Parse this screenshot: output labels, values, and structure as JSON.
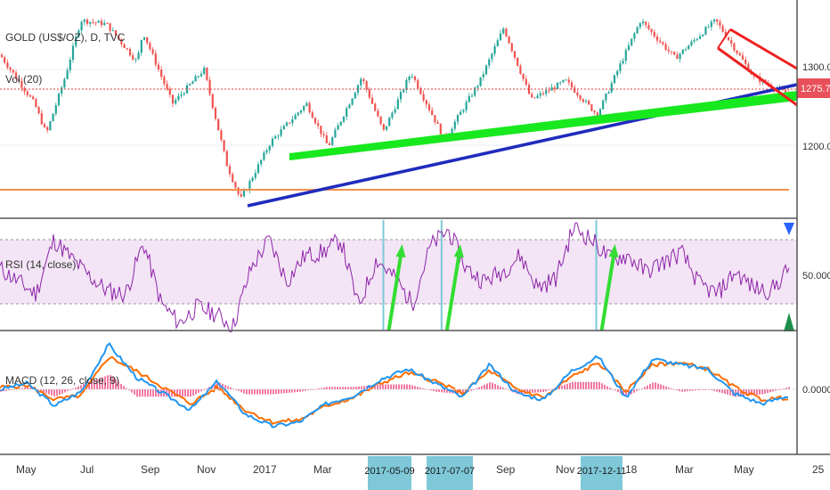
{
  "chart_data": [
    {
      "type": "candlestick",
      "name": "price-pane",
      "symbol_label": "GOLD (US$/OZ), D, TVC",
      "volume_label": "Vol (20)",
      "y_ticks": [
        "1300.00",
        "1200.00"
      ],
      "y_range": [
        1110,
        1390
      ],
      "last_price": "1275.75",
      "approx_close_path": [
        [
          "2016-05-01",
          1290
        ],
        [
          "2016-05-20",
          1255
        ],
        [
          "2016-06-01",
          1215
        ],
        [
          "2016-06-20",
          1290
        ],
        [
          "2016-07-06",
          1365
        ],
        [
          "2016-08-01",
          1360
        ],
        [
          "2016-09-01",
          1310
        ],
        [
          "2016-09-07",
          1350
        ],
        [
          "2016-10-07",
          1255
        ],
        [
          "2016-11-08",
          1300
        ],
        [
          "2016-12-01",
          1175
        ],
        [
          "2016-12-15",
          1128
        ],
        [
          "2017-01-15",
          1205
        ],
        [
          "2017-02-20",
          1255
        ],
        [
          "2017-03-14",
          1198
        ],
        [
          "2017-04-17",
          1290
        ],
        [
          "2017-05-09",
          1218
        ],
        [
          "2017-06-06",
          1296
        ],
        [
          "2017-07-10",
          1208
        ],
        [
          "2017-08-15",
          1285
        ],
        [
          "2017-09-08",
          1355
        ],
        [
          "2017-10-06",
          1260
        ],
        [
          "2017-11-10",
          1285
        ],
        [
          "2017-12-12",
          1240
        ],
        [
          "2018-01-25",
          1365
        ],
        [
          "2018-03-01",
          1315
        ],
        [
          "2018-04-11",
          1365
        ],
        [
          "2018-05-20",
          1290
        ],
        [
          "2018-06-22",
          1268
        ]
      ],
      "annotations": [
        {
          "kind": "horizontal-line",
          "color": "#f5914a",
          "value": 1135
        },
        {
          "kind": "horizontal-dotted-line",
          "color": "#e03a3a",
          "value": 1275.75
        },
        {
          "kind": "trendline",
          "color": "#1f2bbd",
          "from": [
            "2016-12-15",
            1128
          ],
          "to": [
            "2018-06-28",
            1278
          ]
        },
        {
          "kind": "trendline",
          "color": "#18e81e",
          "from": [
            "2017-02-01",
            1195
          ],
          "to": [
            "2018-06-28",
            1262
          ]
        },
        {
          "kind": "channel",
          "color": "#ee2020"
        }
      ]
    },
    {
      "type": "line",
      "name": "rsi-pane",
      "label": "RSI (14, close)",
      "y_ticks": [
        "50.0000"
      ],
      "y_range": [
        0,
        100
      ],
      "bands": [
        30,
        70
      ],
      "series": [
        {
          "values": [
            52,
            44,
            36,
            70,
            58,
            47,
            38,
            36,
            68,
            30,
            18,
            28,
            24,
            16,
            52,
            70,
            44,
            60,
            62,
            70,
            28,
            58,
            46,
            30,
            66,
            76,
            52,
            44,
            50,
            60,
            40,
            46,
            78,
            70,
            58,
            60,
            50,
            56,
            62,
            42,
            36,
            50,
            40,
            38,
            52
          ]
        }
      ],
      "highlight_dates": [
        "2017-05-09",
        "2017-07-07",
        "2017-12-11"
      ],
      "signals": [
        {
          "kind": "arrow",
          "color": "#33dd33"
        },
        {
          "kind": "arrow",
          "color": "#33dd33"
        },
        {
          "kind": "arrow",
          "color": "#33dd33"
        }
      ]
    },
    {
      "type": "line",
      "name": "macd-pane",
      "label": "MACD (12, 26, close, 9)",
      "y_ticks": [
        "0.0000"
      ],
      "y_range": [
        -25,
        30
      ],
      "series": [
        {
          "color": "#2196f3",
          "values": [
            0,
            3,
            -8,
            -1,
            22,
            6,
            -2,
            -10,
            4,
            -12,
            -18,
            -16,
            -7,
            -3,
            5,
            10,
            3,
            -4,
            12,
            -2,
            -5,
            9,
            16,
            -4,
            15,
            12,
            10,
            -2,
            -7,
            -3
          ]
        },
        {
          "color": "#ff6d00",
          "values": [
            1,
            2,
            -5,
            -3,
            16,
            9,
            1,
            -7,
            1,
            -10,
            -16,
            -15,
            -8,
            -4,
            3,
            8,
            4,
            -2,
            9,
            0,
            -4,
            6,
            13,
            -1,
            12,
            13,
            10,
            1,
            -5,
            -4
          ]
        }
      ]
    }
  ],
  "x_axis": {
    "ticks": [
      "May",
      "Jul",
      "Sep",
      "Nov",
      "2017",
      "Mar",
      "Sep",
      "Nov",
      "18",
      "Mar",
      "May",
      "25"
    ],
    "highlight_labels": [
      "2017-05-09",
      "2017-07-07",
      "2017-12-11"
    ]
  },
  "colors": {
    "up_candle": "#26a69a",
    "down_candle": "#ef5350",
    "rsi_line": "#8e24aa",
    "rsi_band": "#f3e5f5",
    "macd_line": "#2196f3",
    "signal_line": "#ff6d00",
    "histogram": "#f06292",
    "highlight": "#7ec8d8",
    "last_price_bg": "#e8505a"
  }
}
